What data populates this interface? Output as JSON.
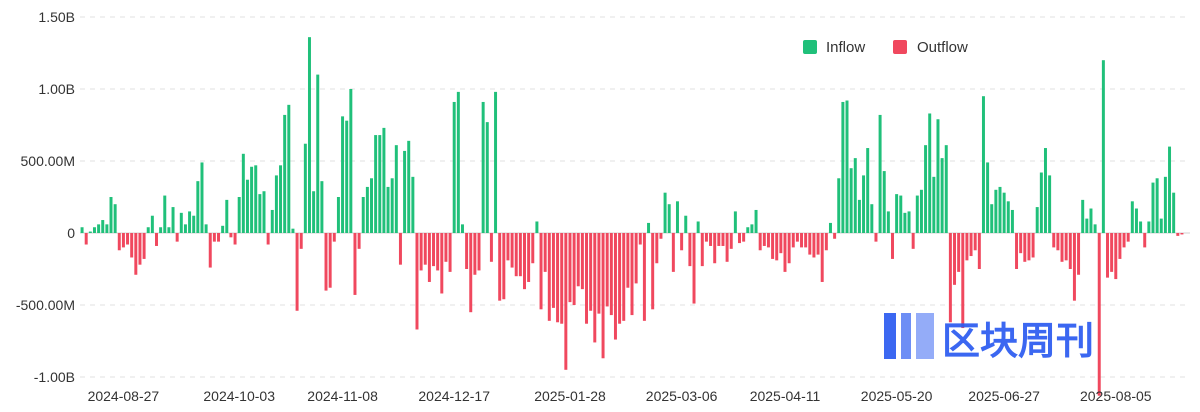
{
  "chart_data": {
    "type": "bar",
    "yticks": [
      {
        "label": "1.50B",
        "value": 1500
      },
      {
        "label": "1.00B",
        "value": 1000
      },
      {
        "label": "500.00M",
        "value": 500
      },
      {
        "label": "0",
        "value": 0
      },
      {
        "label": "-500.00M",
        "value": -500
      },
      {
        "label": "-1.00B",
        "value": -1000
      }
    ],
    "xticks": [
      {
        "label": "2024-08-27",
        "index": 10
      },
      {
        "label": "2024-10-03",
        "index": 38
      },
      {
        "label": "2024-11-08",
        "index": 63
      },
      {
        "label": "2024-12-17",
        "index": 90
      },
      {
        "label": "2025-01-28",
        "index": 118
      },
      {
        "label": "2025-03-06",
        "index": 145
      },
      {
        "label": "2025-04-11",
        "index": 170
      },
      {
        "label": "2025-05-20",
        "index": 197
      },
      {
        "label": "2025-06-27",
        "index": 223
      },
      {
        "label": "2025-08-05",
        "index": 250
      }
    ],
    "ylim": [
      -1000,
      1500
    ],
    "unit": "M",
    "legend": {
      "position": "top-right"
    },
    "series": [
      {
        "name": "Inflow",
        "color": "#20c07a"
      },
      {
        "name": "Outflow",
        "color": "#f0485e"
      }
    ],
    "values": [
      40,
      -80,
      10,
      40,
      60,
      90,
      60,
      250,
      200,
      -120,
      -100,
      -80,
      -170,
      -290,
      -220,
      -180,
      40,
      120,
      -90,
      40,
      260,
      40,
      180,
      -60,
      140,
      60,
      150,
      120,
      360,
      490,
      60,
      -240,
      -60,
      -60,
      50,
      230,
      -30,
      -80,
      250,
      550,
      370,
      460,
      470,
      270,
      290,
      -80,
      160,
      400,
      470,
      820,
      890,
      30,
      -540,
      -110,
      620,
      1360,
      290,
      1100,
      360,
      -400,
      -380,
      -60,
      250,
      810,
      780,
      1000,
      -430,
      -110,
      250,
      320,
      380,
      680,
      680,
      730,
      320,
      380,
      610,
      -220,
      570,
      640,
      390,
      -670,
      -260,
      -220,
      -340,
      -230,
      -260,
      -420,
      -200,
      -270,
      910,
      980,
      60,
      -250,
      -550,
      -290,
      -260,
      910,
      770,
      -200,
      980,
      -470,
      -460,
      -190,
      -240,
      -300,
      -300,
      -390,
      -340,
      -210,
      80,
      -530,
      -270,
      -610,
      -520,
      -620,
      -630,
      -950,
      -480,
      -500,
      -370,
      -390,
      -630,
      -540,
      -760,
      -560,
      -870,
      -510,
      -570,
      -740,
      -630,
      -610,
      -380,
      -570,
      -350,
      -80,
      -610,
      70,
      -530,
      -210,
      -40,
      280,
      200,
      -270,
      220,
      -120,
      120,
      -230,
      -490,
      80,
      -230,
      -60,
      -90,
      -210,
      -90,
      -90,
      -200,
      -110,
      150,
      -70,
      -60,
      40,
      60,
      160,
      -120,
      -90,
      -100,
      -180,
      -190,
      -140,
      -270,
      -210,
      -100,
      -60,
      -100,
      -100,
      -150,
      -170,
      -150,
      -340,
      -120,
      70,
      -40,
      380,
      910,
      920,
      450,
      520,
      230,
      400,
      590,
      200,
      -60,
      820,
      430,
      150,
      -180,
      270,
      260,
      140,
      150,
      -110,
      260,
      300,
      610,
      830,
      390,
      790,
      520,
      610,
      -620,
      -360,
      -270,
      -660,
      -190,
      -160,
      -120,
      -250,
      950,
      490,
      200,
      300,
      320,
      280,
      220,
      160,
      -250,
      -140,
      -200,
      -190,
      -170,
      180,
      420,
      590,
      400,
      -100,
      -120,
      -200,
      -190,
      -250,
      -470,
      -290,
      230,
      100,
      170,
      60,
      -1130,
      1200,
      -310,
      -270,
      -320,
      -180,
      -100,
      -60,
      220,
      170,
      80,
      -100,
      80,
      350,
      380,
      100,
      390,
      600,
      280,
      -20,
      -10
    ]
  }
}
